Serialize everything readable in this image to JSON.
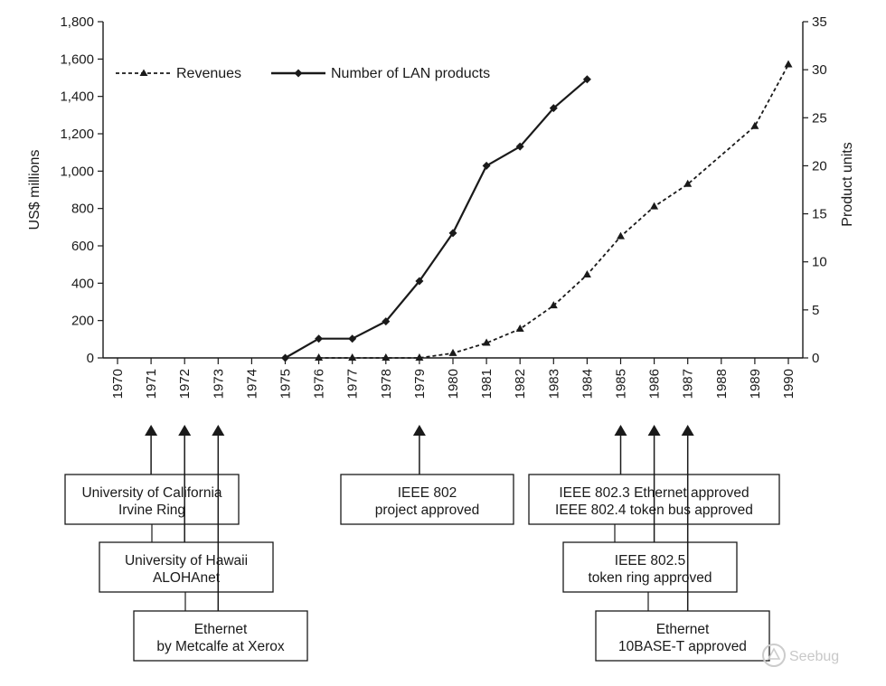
{
  "chart_data": {
    "type": "line",
    "x": [
      "1970",
      "1971",
      "1972",
      "1973",
      "1974",
      "1975",
      "1976",
      "1977",
      "1978",
      "1979",
      "1980",
      "1981",
      "1982",
      "1983",
      "1984",
      "1985",
      "1986",
      "1987",
      "1988",
      "1989",
      "1990"
    ],
    "left_axis": {
      "label": "US$ millions",
      "ylim": [
        0,
        1800
      ],
      "ticks": [
        0,
        200,
        400,
        600,
        800,
        1000,
        1200,
        1400,
        1600,
        1800
      ],
      "tick_labels": [
        "0",
        "200",
        "400",
        "600",
        "800",
        "1,000",
        "1,200",
        "1,400",
        "1,600",
        "1,800"
      ]
    },
    "right_axis": {
      "label": "Product units",
      "ylim": [
        0,
        35
      ],
      "ticks": [
        0,
        5,
        10,
        15,
        20,
        25,
        30,
        35
      ],
      "tick_labels": [
        "0",
        "5",
        "10",
        "15",
        "20",
        "25",
        "30",
        "35"
      ]
    },
    "grid": false,
    "legend_position": "top-left",
    "series": [
      {
        "name": "Revenues",
        "axis": "left",
        "style": "dashed",
        "marker": "triangle",
        "x": [
          "1976",
          "1977",
          "1978",
          "1979",
          "1980",
          "1981",
          "1982",
          "1983",
          "1984",
          "1985",
          "1986",
          "1987",
          "1989",
          "1990"
        ],
        "values": [
          0,
          0,
          0,
          0,
          25,
          80,
          155,
          280,
          445,
          650,
          810,
          930,
          1240,
          1570
        ]
      },
      {
        "name": "Number of LAN products",
        "axis": "right",
        "style": "solid",
        "marker": "diamond",
        "x": [
          "1975",
          "1976",
          "1977",
          "1978",
          "1979",
          "1980",
          "1981",
          "1982",
          "1983",
          "1984"
        ],
        "values": [
          0,
          2,
          2,
          3.8,
          8,
          13,
          20,
          22,
          26,
          29
        ]
      }
    ]
  },
  "events": [
    {
      "text": [
        "University of California",
        "Irvine Ring"
      ]
    },
    {
      "text": [
        "University of Hawaii",
        "ALOHAnet"
      ]
    },
    {
      "text": [
        "Ethernet",
        "by Metcalfe at Xerox"
      ]
    },
    {
      "text": [
        "IEEE 802",
        "project approved"
      ]
    },
    {
      "text": [
        "IEEE 802.3 Ethernet approved",
        "IEEE 802.4 token bus approved"
      ]
    },
    {
      "text": [
        "IEEE 802.5",
        "token ring approved"
      ]
    },
    {
      "text": [
        "Ethernet",
        "10BASE-T approved"
      ]
    }
  ],
  "watermark": {
    "text": "Seebug",
    "icon": "seebug-logo-icon"
  }
}
